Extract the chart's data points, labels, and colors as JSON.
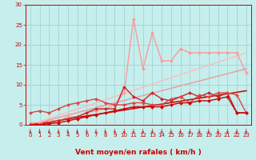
{
  "xlabel": "Vent moyen/en rafales ( km/h )",
  "xlim": [
    -0.5,
    23.5
  ],
  "ylim": [
    0,
    30
  ],
  "yticks": [
    0,
    5,
    10,
    15,
    20,
    25,
    30
  ],
  "xticks": [
    0,
    1,
    2,
    3,
    4,
    5,
    6,
    7,
    8,
    9,
    10,
    11,
    12,
    13,
    14,
    15,
    16,
    17,
    18,
    19,
    20,
    21,
    22,
    23
  ],
  "bg_color": "#c5eeed",
  "grid_color": "#9ecfcf",
  "series": [
    {
      "x": [
        0,
        23
      ],
      "y": [
        0,
        8.5
      ],
      "color": "#cc0000",
      "lw": 1.1,
      "marker": null,
      "zorder": 3
    },
    {
      "x": [
        0,
        23
      ],
      "y": [
        0,
        14
      ],
      "color": "#ee9999",
      "lw": 1.0,
      "marker": null,
      "zorder": 2
    },
    {
      "x": [
        0,
        23
      ],
      "y": [
        0,
        18
      ],
      "color": "#ffbbbb",
      "lw": 1.0,
      "marker": null,
      "zorder": 2
    },
    {
      "x": [
        0,
        1,
        2,
        3,
        4,
        5,
        6,
        7,
        8,
        9,
        10,
        11,
        12,
        13,
        14,
        15,
        16,
        17,
        18,
        19,
        20,
        21,
        22,
        23
      ],
      "y": [
        0,
        0,
        0.3,
        0.5,
        1,
        1.5,
        2,
        2.5,
        3,
        3.5,
        4,
        4.5,
        4.5,
        4.5,
        4.5,
        5,
        5.5,
        5.5,
        6,
        6,
        6.5,
        7,
        3,
        3
      ],
      "color": "#cc0000",
      "lw": 1.0,
      "marker": "D",
      "ms": 2.0,
      "zorder": 5
    },
    {
      "x": [
        0,
        1,
        2,
        3,
        4,
        5,
        6,
        7,
        8,
        9,
        10,
        11,
        12,
        13,
        14,
        15,
        16,
        17,
        18,
        19,
        20,
        21,
        22,
        23
      ],
      "y": [
        0,
        0,
        0.5,
        1,
        1.5,
        2,
        3,
        4,
        4,
        4,
        9.5,
        7,
        6,
        8,
        6.5,
        6,
        7,
        8,
        7,
        8,
        7,
        8,
        3,
        3
      ],
      "color": "#cc2222",
      "lw": 1.0,
      "marker": "D",
      "ms": 2.0,
      "zorder": 4
    },
    {
      "x": [
        0,
        1,
        2,
        3,
        4,
        5,
        6,
        7,
        8,
        9,
        10,
        11,
        12,
        13,
        14,
        15,
        16,
        17,
        18,
        19,
        20,
        21,
        22,
        23
      ],
      "y": [
        0.5,
        0.5,
        1,
        1,
        2,
        2,
        3,
        3.5,
        4,
        5,
        8,
        26.5,
        14,
        23,
        16,
        16,
        19,
        18,
        18,
        18,
        18,
        18,
        18,
        13
      ],
      "color": "#ff9999",
      "lw": 1.0,
      "marker": "D",
      "ms": 2.0,
      "zorder": 3
    },
    {
      "x": [
        0,
        1,
        2,
        3,
        4,
        5,
        6,
        7,
        8,
        9,
        10,
        11,
        12,
        13,
        14,
        15,
        16,
        17,
        18,
        19,
        20,
        21,
        22,
        23
      ],
      "y": [
        3,
        3.5,
        3,
        4,
        5,
        5.5,
        6,
        6.5,
        5.5,
        5,
        5,
        5.5,
        5.5,
        5,
        5,
        6.5,
        7,
        5.5,
        7.5,
        7,
        8,
        8,
        7.5,
        3
      ],
      "color": "#dd4444",
      "lw": 1.0,
      "marker": "D",
      "ms": 2.0,
      "zorder": 4
    }
  ],
  "arrow_color": "#cc0000",
  "xlabel_color": "#cc0000",
  "xlabel_fontsize": 6.5,
  "tick_fontsize": 5.0,
  "tick_color": "#cc0000"
}
